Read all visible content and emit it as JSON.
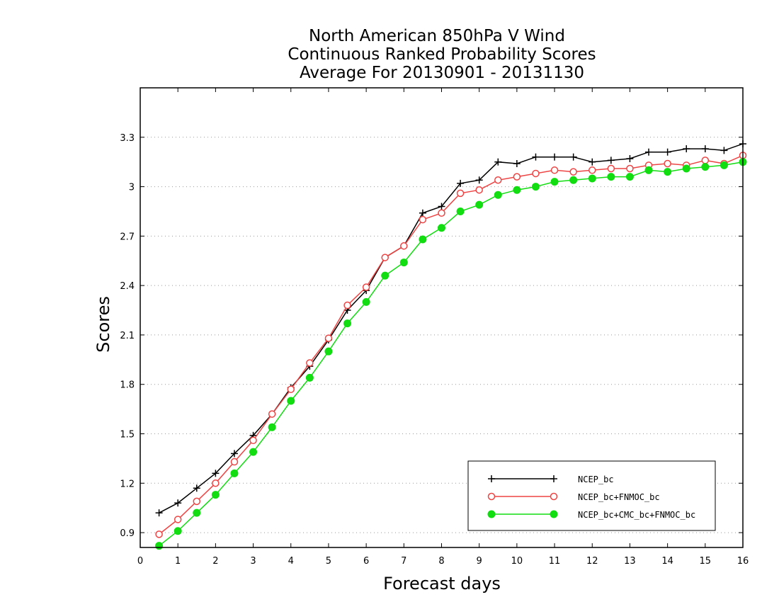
{
  "chart_data": {
    "type": "line",
    "title": [
      "North American 850hPa V Wind",
      "Continuous Ranked Probability Scores",
      "Average For 20130901 - 20131130"
    ],
    "xlabel": "Forecast days",
    "ylabel": "Scores",
    "xlim": [
      0,
      16
    ],
    "ylim": [
      0.81,
      3.6
    ],
    "xticks": [
      "0",
      "1",
      "2",
      "3",
      "4",
      "5",
      "6",
      "7",
      "8",
      "9",
      "10",
      "11",
      "12",
      "13",
      "14",
      "15",
      "16"
    ],
    "yticks": [
      "0.9",
      "1.2",
      "1.5",
      "1.8",
      "2.1",
      "2.4",
      "2.7",
      "3",
      "3.3"
    ],
    "grid": "horizontal dotted",
    "legend_position": "bottom-right",
    "x": [
      0.5,
      1,
      1.5,
      2,
      2.5,
      3,
      3.5,
      4,
      4.5,
      5,
      5.5,
      6,
      6.5,
      7,
      7.5,
      8,
      8.5,
      9,
      9.5,
      10,
      10.5,
      11,
      11.5,
      12,
      12.5,
      13,
      13.5,
      14,
      14.5,
      15,
      15.5,
      16
    ],
    "series": [
      {
        "name": "NCEP_bc",
        "color": "#000000",
        "marker": "plus",
        "values": [
          1.02,
          1.08,
          1.17,
          1.26,
          1.38,
          1.49,
          1.62,
          1.78,
          1.91,
          2.07,
          2.25,
          2.37,
          2.57,
          2.64,
          2.84,
          2.88,
          3.02,
          3.04,
          3.15,
          3.14,
          3.18,
          3.18,
          3.18,
          3.15,
          3.16,
          3.17,
          3.21,
          3.21,
          3.23,
          3.23,
          3.22,
          3.26
        ]
      },
      {
        "name": "NCEP_bc+FNMOC_bc",
        "color": "#ee4444",
        "marker": "open-circle",
        "values": [
          0.89,
          0.98,
          1.09,
          1.2,
          1.33,
          1.46,
          1.62,
          1.77,
          1.93,
          2.08,
          2.28,
          2.39,
          2.57,
          2.64,
          2.8,
          2.84,
          2.96,
          2.98,
          3.04,
          3.06,
          3.08,
          3.1,
          3.09,
          3.1,
          3.11,
          3.11,
          3.13,
          3.14,
          3.13,
          3.16,
          3.14,
          3.19
        ]
      },
      {
        "name": "NCEP_bc+CMC_bc+FNMOC_bc",
        "color": "#11dd11",
        "marker": "filled-circle",
        "values": [
          0.82,
          0.91,
          1.02,
          1.13,
          1.26,
          1.39,
          1.54,
          1.7,
          1.84,
          2.0,
          2.17,
          2.3,
          2.46,
          2.54,
          2.68,
          2.75,
          2.85,
          2.89,
          2.95,
          2.98,
          3.0,
          3.03,
          3.04,
          3.05,
          3.06,
          3.06,
          3.1,
          3.09,
          3.11,
          3.12,
          3.13,
          3.15
        ]
      }
    ]
  }
}
